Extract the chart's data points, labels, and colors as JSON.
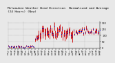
{
  "title": "Milwaukee Weather Wind Direction  Normalized and Average",
  "title2": "(24 Hours) (New)",
  "bg_color": "#e8e8e8",
  "plot_bg": "#e8e8e8",
  "ylim_min": -10,
  "ylim_max": 380,
  "yticks": [
    0,
    90,
    180,
    270,
    360
  ],
  "ytick_labels": [
    "0",
    "90",
    "180",
    "270",
    "360"
  ],
  "grid_color": "#888888",
  "red_color": "#cc0000",
  "blue_color": "#0000bb",
  "title_fontsize": 3.2,
  "tick_fontsize": 2.5,
  "n_points": 96
}
